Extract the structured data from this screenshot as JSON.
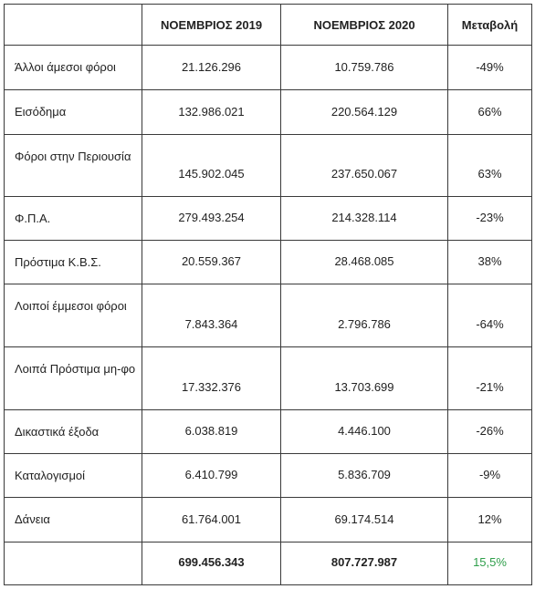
{
  "table": {
    "columns": [
      "ΝΟΕΜΒΡΙΟΣ 2019",
      "ΝΟΕΜΒΡΙΟΣ 2020",
      "Μεταβολή"
    ],
    "rows": [
      {
        "label": "Άλλοι άμεσοι φόροι",
        "values": [
          "21.126.296",
          "10.759.786",
          "-49%"
        ]
      },
      {
        "label": "Εισόδημα",
        "values": [
          "132.986.021",
          "220.564.129",
          "66%"
        ]
      },
      {
        "label": "Φόροι στην Περιουσία",
        "values": [
          "145.902.045",
          "237.650.067",
          "63%"
        ]
      },
      {
        "label": "Φ.Π.Α.",
        "values": [
          "279.493.254",
          "214.328.114",
          "-23%"
        ]
      },
      {
        "label": "Πρόστιμα Κ.Β.Σ.",
        "values": [
          "20.559.367",
          "28.468.085",
          "38%"
        ]
      },
      {
        "label": "Λοιποί έμμεσοι φόροι",
        "values": [
          "7.843.364",
          "2.796.786",
          "-64%"
        ]
      },
      {
        "label": "Λοιπά Πρόστιμα μη-φο",
        "values": [
          "17.332.376",
          "13.703.699",
          "-21%"
        ]
      },
      {
        "label": "Δικαστικά έξοδα",
        "values": [
          "6.038.819",
          "4.446.100",
          "-26%"
        ]
      },
      {
        "label": "Καταλογισμοί",
        "values": [
          "6.410.799",
          "5.836.709",
          "-9%"
        ]
      },
      {
        "label": "Δάνεια",
        "values": [
          "61.764.001",
          "69.174.514",
          "12%"
        ]
      }
    ],
    "total": {
      "values": [
        "699.456.343",
        "807.727.987",
        "15,5%"
      ]
    }
  }
}
